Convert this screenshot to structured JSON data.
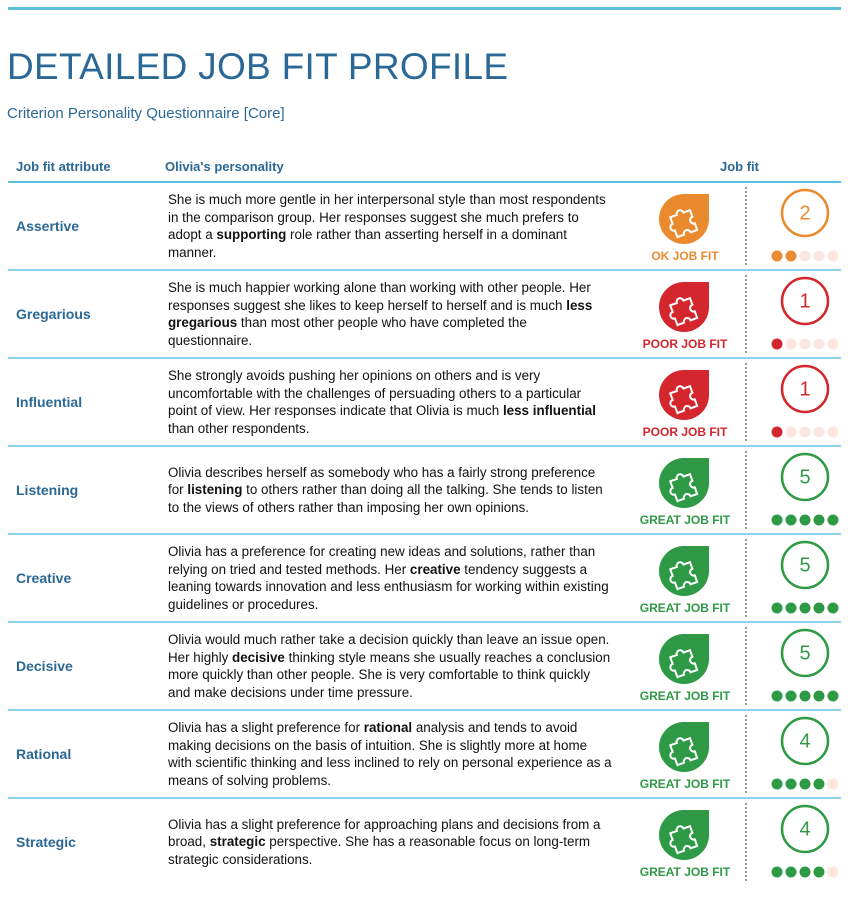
{
  "header": {
    "title": "DETAILED JOB FIT PROFILE",
    "subtitle": "Criterion Personality Questionnaire [Core]"
  },
  "table": {
    "columns": [
      "Job fit attribute",
      "Olivia's personality",
      "Job fit"
    ],
    "rows": [
      {
        "attribute": "Assertive",
        "fit": "OK JOB FIT",
        "color": "#ea8a2e",
        "score": 2,
        "description": [
          {
            "text": "She is much more gentle in her interpersonal style than most respondents in the comparison group. Her responses suggest she much prefers to adopt a ",
            "bold": false
          },
          {
            "text": "supporting",
            "bold": true
          },
          {
            "text": " role rather than asserting herself in a dominant manner.",
            "bold": false
          }
        ]
      },
      {
        "attribute": "Gregarious",
        "fit": "POOR JOB FIT",
        "color": "#d3262d",
        "score": 1,
        "description": [
          {
            "text": "She is much happier working alone than working with other people. Her responses suggest she likes to keep herself to herself and is much ",
            "bold": false
          },
          {
            "text": "less gregarious",
            "bold": true
          },
          {
            "text": " than most other people who have completed the questionnaire.",
            "bold": false
          }
        ]
      },
      {
        "attribute": "Influential",
        "fit": "POOR JOB FIT",
        "color": "#d3262d",
        "score": 1,
        "description": [
          {
            "text": "She strongly avoids pushing her opinions on others and is very uncomfortable with the challenges of persuading others to a particular point of view. Her responses indicate that Olivia is much ",
            "bold": false
          },
          {
            "text": "less influential",
            "bold": true
          },
          {
            "text": " than other respondents.",
            "bold": false
          }
        ]
      },
      {
        "attribute": "Listening",
        "fit": "GREAT JOB FIT",
        "color": "#2f9a45",
        "score": 5,
        "description": [
          {
            "text": "Olivia describes herself as somebody who has a fairly strong preference for ",
            "bold": false
          },
          {
            "text": "listening",
            "bold": true
          },
          {
            "text": " to others rather than doing all the talking. She tends to listen to the views of others rather than imposing her own opinions.",
            "bold": false
          }
        ]
      },
      {
        "attribute": "Creative",
        "fit": "GREAT JOB FIT",
        "color": "#2f9a45",
        "score": 5,
        "description": [
          {
            "text": "Olivia has a preference for creating new ideas and solutions, rather than relying on tried and tested methods. Her ",
            "bold": false
          },
          {
            "text": "creative",
            "bold": true
          },
          {
            "text": " tendency suggests a leaning towards innovation and less enthusiasm for working within existing guidelines or procedures.",
            "bold": false
          }
        ]
      },
      {
        "attribute": "Decisive",
        "fit": "GREAT JOB FIT",
        "color": "#2f9a45",
        "score": 5,
        "description": [
          {
            "text": "Olivia would much rather take a decision quickly than leave an issue open. Her highly ",
            "bold": false
          },
          {
            "text": "decisive",
            "bold": true
          },
          {
            "text": " thinking style means she usually reaches a conclusion more quickly than other people. She is very comfortable to think quickly and make decisions under time pressure.",
            "bold": false
          }
        ]
      },
      {
        "attribute": "Rational",
        "fit": "GREAT JOB FIT",
        "color": "#2f9a45",
        "score": 4,
        "description": [
          {
            "text": "Olivia has a slight preference for ",
            "bold": false
          },
          {
            "text": "rational",
            "bold": true
          },
          {
            "text": " analysis and tends to avoid making decisions on the basis of intuition. She is slightly more at home with scientific thinking and less inclined to rely on personal experience as a means of solving problems.",
            "bold": false
          }
        ]
      },
      {
        "attribute": "Strategic",
        "fit": "GREAT JOB FIT",
        "color": "#2f9a45",
        "score": 4,
        "description": [
          {
            "text": "Olivia has a slight preference for approaching plans and decisions from a broad, ",
            "bold": false
          },
          {
            "text": "strategic",
            "bold": true
          },
          {
            "text": " perspective. She has a reasonable focus on long-term strategic considerations.",
            "bold": false
          }
        ]
      }
    ]
  }
}
